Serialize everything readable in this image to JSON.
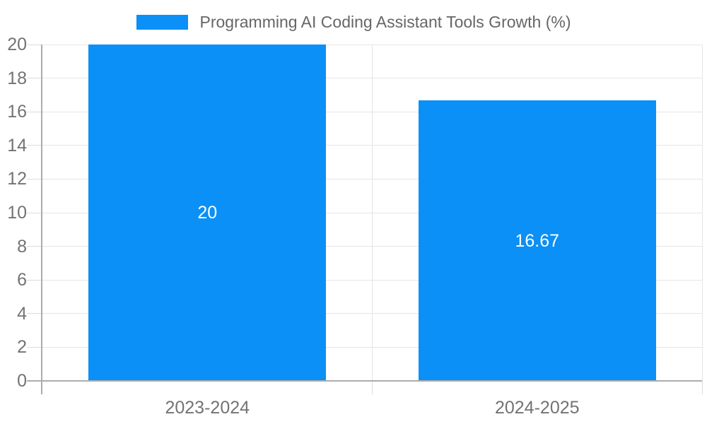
{
  "chart_data": {
    "type": "bar",
    "title": "",
    "legend": {
      "label": "Programming AI Coding Assistant Tools Growth (%)",
      "position": "top"
    },
    "categories": [
      "2023-2024",
      "2024-2025"
    ],
    "series": [
      {
        "name": "Programming AI Coding Assistant Tools Growth (%)",
        "values": [
          20,
          16.67
        ],
        "data_labels": [
          "20",
          "16.67"
        ]
      }
    ],
    "xlabel": "",
    "ylabel": "",
    "ylim": [
      0,
      20
    ],
    "ytick_step": 2,
    "ytick_labels": [
      "0",
      "2",
      "4",
      "6",
      "8",
      "10",
      "12",
      "14",
      "16",
      "18",
      "20"
    ],
    "grid": true,
    "legend_position": "top"
  },
  "colors": {
    "bar": "#0a90f6",
    "grid_line": "#e5e5e5",
    "tick_mark": "#dcdcdc",
    "axis_line": "#acacac",
    "tick_text": "#737373",
    "legend_text": "#666666",
    "value_label": "#ffffff",
    "background": "#ffffff"
  }
}
